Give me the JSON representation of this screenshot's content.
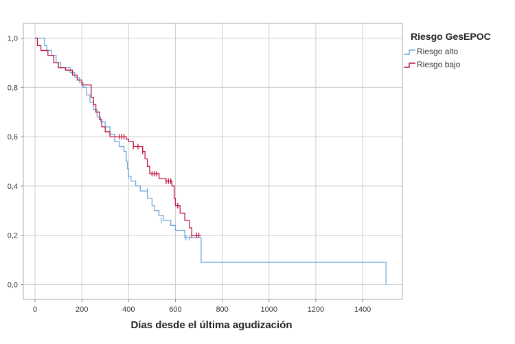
{
  "chart_data": {
    "type": "line",
    "xlabel": "Días desde el última agudización",
    "ylabel": "",
    "xlim": [
      -50,
      1570
    ],
    "ylim": [
      -0.06,
      1.06
    ],
    "x_ticks": [
      0,
      200,
      400,
      600,
      800,
      1000,
      1200,
      1400
    ],
    "x_tick_labels": [
      "0",
      "200",
      "400",
      "600",
      "800",
      "1000",
      "1200",
      "1400"
    ],
    "y_ticks": [
      0.0,
      0.2,
      0.4,
      0.6,
      0.8,
      1.0
    ],
    "y_tick_labels": [
      "0,0",
      "0,2",
      "0,4",
      "0,6",
      "0,8",
      "1,0"
    ],
    "grid": true,
    "legend": {
      "title": "Riesgo GesEPOC",
      "placement": "top-right, outside plot"
    },
    "series": [
      {
        "name": "Riesgo alto",
        "color": "#6fa8dc",
        "step": true,
        "points": [
          [
            0,
            1.0
          ],
          [
            40,
            0.97
          ],
          [
            50,
            0.95
          ],
          [
            70,
            0.93
          ],
          [
            90,
            0.9
          ],
          [
            110,
            0.88
          ],
          [
            150,
            0.86
          ],
          [
            170,
            0.84
          ],
          [
            190,
            0.82
          ],
          [
            205,
            0.8
          ],
          [
            220,
            0.77
          ],
          [
            235,
            0.74
          ],
          [
            250,
            0.71
          ],
          [
            265,
            0.68
          ],
          [
            280,
            0.66
          ],
          [
            300,
            0.64
          ],
          [
            320,
            0.61
          ],
          [
            340,
            0.58
          ],
          [
            360,
            0.56
          ],
          [
            380,
            0.54
          ],
          [
            390,
            0.5
          ],
          [
            395,
            0.47
          ],
          [
            400,
            0.44
          ],
          [
            410,
            0.42
          ],
          [
            430,
            0.4
          ],
          [
            450,
            0.38
          ],
          [
            480,
            0.35
          ],
          [
            500,
            0.32
          ],
          [
            510,
            0.3
          ],
          [
            530,
            0.28
          ],
          [
            550,
            0.26
          ],
          [
            580,
            0.24
          ],
          [
            600,
            0.22
          ],
          [
            640,
            0.19
          ],
          [
            700,
            0.19
          ],
          [
            710,
            0.09
          ],
          [
            1500,
            0.09
          ],
          [
            1500,
            0.0
          ]
        ],
        "censored": [
          [
            400,
            0.44
          ],
          [
            480,
            0.38
          ],
          [
            540,
            0.26
          ],
          [
            645,
            0.19
          ],
          [
            660,
            0.19
          ]
        ]
      },
      {
        "name": "Riesgo bajo",
        "color": "#c0143c",
        "step": true,
        "points": [
          [
            0,
            1.0
          ],
          [
            10,
            0.97
          ],
          [
            25,
            0.95
          ],
          [
            55,
            0.93
          ],
          [
            80,
            0.9
          ],
          [
            100,
            0.88
          ],
          [
            130,
            0.87
          ],
          [
            160,
            0.85
          ],
          [
            180,
            0.83
          ],
          [
            200,
            0.81
          ],
          [
            240,
            0.76
          ],
          [
            250,
            0.73
          ],
          [
            260,
            0.7
          ],
          [
            275,
            0.67
          ],
          [
            285,
            0.64
          ],
          [
            300,
            0.62
          ],
          [
            320,
            0.6
          ],
          [
            380,
            0.6
          ],
          [
            390,
            0.59
          ],
          [
            400,
            0.58
          ],
          [
            420,
            0.56
          ],
          [
            460,
            0.54
          ],
          [
            470,
            0.51
          ],
          [
            480,
            0.48
          ],
          [
            490,
            0.45
          ],
          [
            530,
            0.43
          ],
          [
            560,
            0.42
          ],
          [
            585,
            0.4
          ],
          [
            595,
            0.35
          ],
          [
            600,
            0.32
          ],
          [
            620,
            0.29
          ],
          [
            640,
            0.26
          ],
          [
            660,
            0.23
          ],
          [
            670,
            0.2
          ],
          [
            710,
            0.2
          ]
        ],
        "censored": [
          [
            360,
            0.6
          ],
          [
            370,
            0.6
          ],
          [
            380,
            0.6
          ],
          [
            420,
            0.56
          ],
          [
            440,
            0.56
          ],
          [
            460,
            0.54
          ],
          [
            500,
            0.45
          ],
          [
            510,
            0.45
          ],
          [
            520,
            0.45
          ],
          [
            560,
            0.42
          ],
          [
            570,
            0.42
          ],
          [
            580,
            0.42
          ],
          [
            610,
            0.32
          ],
          [
            670,
            0.2
          ],
          [
            690,
            0.2
          ],
          [
            700,
            0.2
          ]
        ]
      }
    ]
  }
}
